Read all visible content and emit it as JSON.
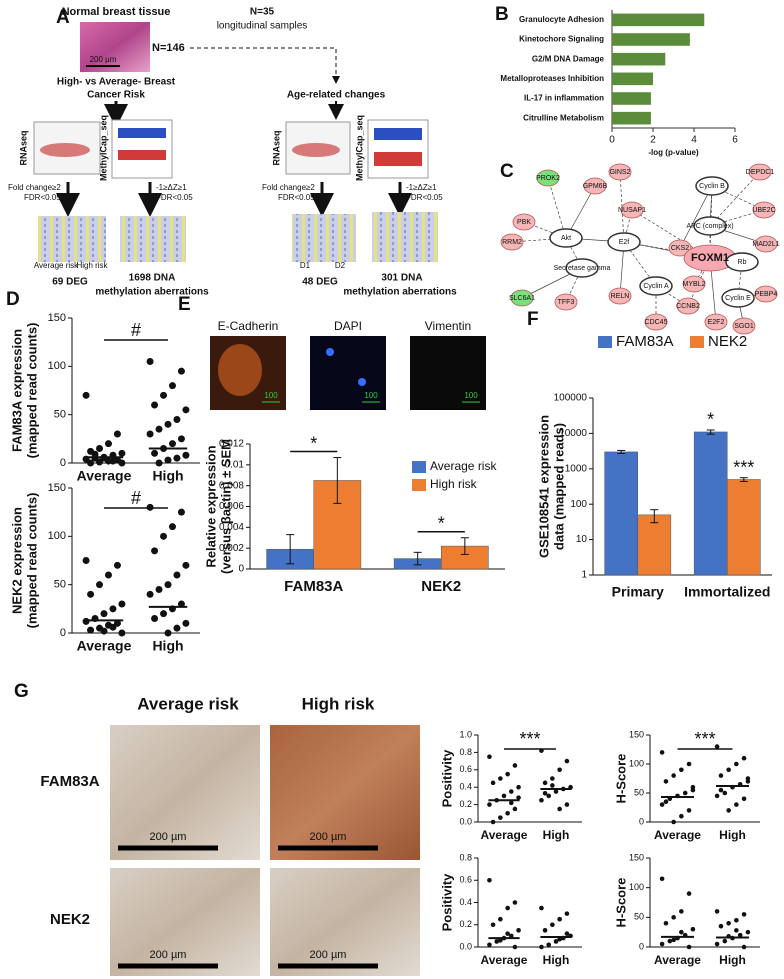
{
  "figure": {
    "panel_a": {
      "label": "A",
      "tissue_title": "Normal breast tissue",
      "scale": "200 µm",
      "n_cross": "N=146",
      "n_long": "N=35",
      "long_label": "longitudinal samples",
      "comparison": [
        "High- vs Average- Breast",
        "Cancer Risk"
      ],
      "age": "Age-related changes",
      "rnaseq": "RNAseq",
      "methyl": "MethylCap_seq",
      "left": {
        "fold": "Fold change≥2",
        "fdr1": "FDR<0.05",
        "dz": "-1≥ΔZ≥1",
        "fdr2": "FDR<0.05",
        "groups": [
          "Average risk",
          "High risk"
        ],
        "deg": "69 DEG",
        "meth": [
          "1698  DNA",
          "methylation aberrations"
        ]
      },
      "right": {
        "fold": "Fold change≥2",
        "fdr1": "FDR<0.05",
        "dz": "-1≥ΔZ≥1",
        "fdr2": "FDR<0.05",
        "groups": [
          "D1",
          "D2"
        ],
        "deg": "48 DEG",
        "meth": [
          "301  DNA",
          "methylation aberrations"
        ]
      }
    },
    "panel_c": {
      "label": "C",
      "nodes": [
        "PROK2",
        "GPM6B",
        "GINS2",
        "NUSAP1",
        "Cyclin B",
        "DEPDC1",
        "UBE2C",
        "PBK",
        "RRM2",
        "Akt",
        "E2f",
        "APC (complex)",
        "CKS2",
        "FOXM1",
        "MAD2L1",
        "Rb",
        "Secretase gamma",
        "Cyclin A",
        "MYBL2",
        "Cyclin E",
        "PEBP4",
        "SLC6A1",
        "TFF3",
        "RELN",
        "CCNB2",
        "CDC45",
        "E2F2",
        "SGO1"
      ]
    },
    "panel_e": {
      "label": "E",
      "stains": [
        "E-Cadherin",
        "DAPI",
        "Vimentin"
      ],
      "scale": "100"
    },
    "panel_g": {
      "label": "G",
      "columns": [
        "Average risk",
        "High risk"
      ],
      "rows": [
        "FAM83A",
        "NEK2"
      ],
      "scale": "200 µm"
    }
  },
  "chart_data": [
    {
      "type": "hbar",
      "panel": "B",
      "categories": [
        "Granulocyte Adhesion",
        "Kinetochore Signaling",
        "G2/M DNA Damage",
        "Metalloproteases Inhibition",
        "IL-17 in inflammation",
        "Citrulline Metabolism"
      ],
      "values": [
        4.5,
        3.8,
        2.6,
        2.0,
        1.9,
        1.9
      ],
      "color": "#5b8c3a",
      "xlim": [
        0,
        6
      ],
      "xticks": [
        0,
        2,
        4,
        6
      ],
      "xlabel": "-log (p-value)",
      "grid": false
    },
    {
      "type": "dot",
      "panel": "D",
      "ylabel": [
        "FAM83A expression",
        "(mapped read counts)"
      ],
      "ylim": [
        0,
        150
      ],
      "yticks": [
        0,
        50,
        100,
        150
      ],
      "categories": [
        "Average",
        "High"
      ],
      "annotation": "#",
      "groups": [
        {
          "values": [
            70,
            30,
            20,
            15,
            12,
            10,
            8,
            6,
            5,
            4,
            3,
            2,
            1,
            0,
            0,
            2,
            5,
            9
          ],
          "mean": 6
        },
        {
          "values": [
            105,
            95,
            80,
            70,
            60,
            55,
            45,
            40,
            35,
            30,
            25,
            20,
            15,
            10,
            8,
            5,
            3,
            0
          ],
          "mean": 15
        }
      ]
    },
    {
      "type": "dot",
      "ylabel": [
        "NEK2 expression",
        "(mapped read counts)"
      ],
      "ylim": [
        0,
        150
      ],
      "yticks": [
        0,
        50,
        100,
        150
      ],
      "categories": [
        "Average",
        "High"
      ],
      "annotation": "#",
      "groups": [
        {
          "values": [
            75,
            70,
            60,
            50,
            40,
            30,
            25,
            20,
            15,
            12,
            10,
            8,
            5,
            3,
            0,
            6,
            2
          ],
          "mean": 13
        },
        {
          "values": [
            130,
            125,
            110,
            100,
            85,
            70,
            60,
            50,
            45,
            40,
            30,
            25,
            20,
            15,
            10,
            5,
            0
          ],
          "mean": 27
        }
      ]
    },
    {
      "type": "bar",
      "ylabel": [
        "Relative expression",
        "(versus βactin) ± SEM"
      ],
      "ylim": [
        0,
        0.012
      ],
      "yticks": [
        0,
        0.002,
        0.004,
        0.006,
        0.008,
        0.01,
        0.012
      ],
      "log": false,
      "categories": [
        "FAM83A",
        "NEK2"
      ],
      "annotations": [
        "*",
        "*"
      ],
      "series": [
        {
          "name": "Average risk",
          "color": "#4472c4",
          "values": [
            0.0019,
            0.001
          ],
          "errors": [
            0.0014,
            0.0006
          ]
        },
        {
          "name": "High risk",
          "color": "#ed7d31",
          "values": [
            0.0085,
            0.0022
          ],
          "errors": [
            0.0022,
            0.0008
          ]
        }
      ]
    },
    {
      "type": "bar",
      "panel": "F",
      "ylabel": [
        "GSE108541 expression",
        "data (mapped reads)"
      ],
      "ylim": [
        1,
        100000
      ],
      "yticks": [
        1,
        10,
        100,
        1000,
        10000,
        100000
      ],
      "log": true,
      "categories": [
        "Primary",
        "Immortalized"
      ],
      "series": [
        {
          "name": "FAM83A",
          "color": "#4472c4",
          "values": [
            3000,
            11000
          ],
          "errors": [
            300,
            1500
          ],
          "annotations": [
            null,
            "*"
          ]
        },
        {
          "name": "NEK2",
          "color": "#ed7d31",
          "values": [
            50,
            500
          ],
          "errors": [
            20,
            60
          ],
          "annotations": [
            null,
            "***"
          ]
        }
      ]
    },
    {
      "type": "dot",
      "ylabel": [
        "Positivity"
      ],
      "ylim": [
        0,
        1
      ],
      "yticks": [
        {
          "value": 0,
          "label": "0.0"
        },
        0.2,
        0.4,
        0.6,
        0.8,
        {
          "value": 1,
          "label": "1.0"
        }
      ],
      "categories": [
        "Average",
        "High"
      ],
      "annotation": "***",
      "groups": [
        {
          "values": [
            0.75,
            0.65,
            0.55,
            0.5,
            0.45,
            0.4,
            0.35,
            0.3,
            0.25,
            0.2,
            0.15,
            0.1,
            0.05,
            0.0,
            0.28,
            0.22
          ],
          "mean": 0.25
        },
        {
          "values": [
            0.82,
            0.7,
            0.6,
            0.5,
            0.45,
            0.4,
            0.38,
            0.35,
            0.3,
            0.25,
            0.2,
            0.15,
            0.42,
            0.33
          ],
          "mean": 0.38
        }
      ]
    },
    {
      "type": "dot",
      "ylabel": [
        "H-Score"
      ],
      "ylim": [
        0,
        150
      ],
      "yticks": [
        0,
        50,
        100,
        150
      ],
      "categories": [
        "Average",
        "High"
      ],
      "annotation": "***",
      "groups": [
        {
          "values": [
            120,
            100,
            90,
            80,
            70,
            60,
            50,
            45,
            40,
            30,
            20,
            10,
            0,
            35,
            55
          ],
          "mean": 43
        },
        {
          "values": [
            130,
            110,
            100,
            90,
            80,
            70,
            65,
            60,
            50,
            45,
            40,
            30,
            20,
            55,
            75
          ],
          "mean": 62
        }
      ]
    },
    {
      "type": "dot",
      "ylabel": [
        "Positivity"
      ],
      "ylim": [
        0,
        0.8
      ],
      "yticks": [
        {
          "value": 0,
          "label": "0.0"
        },
        0.2,
        0.4,
        0.6,
        0.8
      ],
      "categories": [
        "Average",
        "High"
      ],
      "groups": [
        {
          "values": [
            0.6,
            0.4,
            0.35,
            0.25,
            0.2,
            0.15,
            0.1,
            0.08,
            0.05,
            0.02,
            0,
            0.12,
            0.06
          ],
          "mean": 0.08
        },
        {
          "values": [
            0.35,
            0.3,
            0.25,
            0.2,
            0.15,
            0.1,
            0.08,
            0.05,
            0.02,
            0,
            0.12,
            0.07
          ],
          "mean": 0.09
        }
      ]
    },
    {
      "type": "dot",
      "ylabel": [
        "H-Score"
      ],
      "ylim": [
        0,
        150
      ],
      "yticks": [
        0,
        50,
        100,
        150
      ],
      "categories": [
        "Average",
        "High"
      ],
      "groups": [
        {
          "values": [
            115,
            90,
            60,
            50,
            40,
            30,
            20,
            15,
            10,
            5,
            0,
            25,
            12
          ],
          "mean": 17
        },
        {
          "values": [
            60,
            55,
            45,
            40,
            35,
            25,
            20,
            15,
            10,
            5,
            0,
            28,
            18
          ],
          "mean": 16
        }
      ]
    }
  ]
}
